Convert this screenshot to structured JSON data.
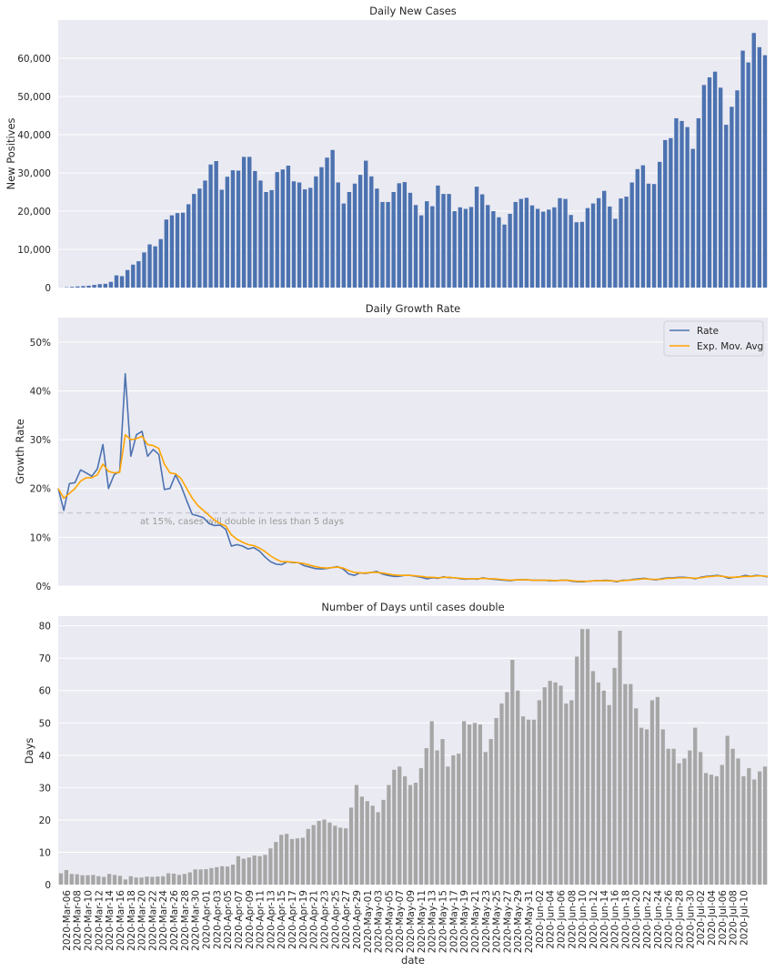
{
  "chart_data": [
    {
      "type": "bar",
      "title": "Daily New Cases",
      "ylabel": "New Positives",
      "xlabel": "",
      "ylim": [
        0,
        70000
      ],
      "yticks": [
        "0",
        "10,000",
        "20,000",
        "30,000",
        "40,000",
        "50,000",
        "60,000"
      ],
      "ytick_values": [
        0,
        10000,
        20000,
        30000,
        40000,
        50000,
        60000
      ],
      "grid": true,
      "color": "#4c72b0",
      "values": [
        30,
        100,
        200,
        300,
        400,
        500,
        700,
        900,
        1000,
        1500,
        3200,
        3000,
        4600,
        6000,
        6900,
        9200,
        11300,
        10800,
        12700,
        17800,
        18900,
        19500,
        19600,
        21800,
        24500,
        25900,
        28000,
        32200,
        33100,
        25600,
        29000,
        30700,
        30600,
        34200,
        34200,
        30500,
        28000,
        25000,
        25500,
        30200,
        30900,
        31900,
        27800,
        27500,
        25700,
        26100,
        29100,
        31500,
        34000,
        36000,
        27500,
        22000,
        25000,
        27200,
        29500,
        33200,
        29100,
        25900,
        22400,
        22400,
        25000,
        27300,
        27600,
        24800,
        21600,
        18900,
        22600,
        21300,
        26700,
        24500,
        24500,
        20000,
        21000,
        20600,
        21100,
        26400,
        24400,
        21600,
        20000,
        18400,
        16500,
        19300,
        22400,
        23200,
        23500,
        21500,
        20600,
        19900,
        20400,
        21000,
        23400,
        23200,
        19000,
        17100,
        17200,
        20800,
        22000,
        23400,
        25300,
        21200,
        18000,
        23300,
        23800,
        27500,
        31000,
        32000,
        27200,
        27100,
        32900,
        38600,
        39100,
        44300,
        43600,
        42000,
        36300,
        44300,
        53000,
        55000,
        56500,
        52300,
        42600,
        47300,
        51600,
        62000,
        58900,
        66600,
        62900,
        60800
      ]
    },
    {
      "type": "line",
      "title": "Daily Growth Rate",
      "ylabel": "Growth Rate",
      "xlabel": "",
      "ylim": [
        0,
        0.55
      ],
      "yticks": [
        "0%",
        "10%",
        "20%",
        "30%",
        "40%",
        "50%"
      ],
      "ytick_values": [
        0,
        0.1,
        0.2,
        0.3,
        0.4,
        0.5
      ],
      "grid": true,
      "legend": "top-right",
      "threshold": 0.15,
      "annotation": "at 15%, cases will double in less than 5 days",
      "series": [
        {
          "name": "Rate",
          "color": "#4c72b0",
          "values": [
            0.2,
            0.155,
            0.21,
            0.212,
            0.238,
            0.232,
            0.225,
            0.24,
            0.29,
            0.2,
            0.228,
            0.235,
            0.435,
            0.266,
            0.31,
            0.317,
            0.266,
            0.28,
            0.27,
            0.198,
            0.2,
            0.228,
            0.205,
            0.175,
            0.147,
            0.144,
            0.14,
            0.128,
            0.124,
            0.125,
            0.116,
            0.082,
            0.085,
            0.082,
            0.076,
            0.079,
            0.072,
            0.06,
            0.05,
            0.045,
            0.044,
            0.05,
            0.048,
            0.048,
            0.042,
            0.039,
            0.036,
            0.035,
            0.036,
            0.038,
            0.04,
            0.035,
            0.025,
            0.022,
            0.027,
            0.026,
            0.028,
            0.03,
            0.025,
            0.022,
            0.02,
            0.02,
            0.022,
            0.022,
            0.02,
            0.018,
            0.015,
            0.017,
            0.016,
            0.019,
            0.017,
            0.017,
            0.015,
            0.014,
            0.015,
            0.014,
            0.017,
            0.015,
            0.014,
            0.013,
            0.012,
            0.011,
            0.013,
            0.013,
            0.013,
            0.012,
            0.012,
            0.012,
            0.011,
            0.011,
            0.012,
            0.012,
            0.01,
            0.009,
            0.009,
            0.01,
            0.011,
            0.011,
            0.012,
            0.011,
            0.009,
            0.012,
            0.012,
            0.014,
            0.015,
            0.016,
            0.014,
            0.013,
            0.015,
            0.017,
            0.017,
            0.018,
            0.018,
            0.017,
            0.015,
            0.018,
            0.02,
            0.021,
            0.022,
            0.02,
            0.016,
            0.018,
            0.019,
            0.022,
            0.02,
            0.022,
            0.021,
            0.019
          ]
        },
        {
          "name": "Exp. Mov. Avg",
          "color": "#ffa500",
          "values": [
            0.2,
            0.18,
            0.19,
            0.2,
            0.215,
            0.222,
            0.222,
            0.228,
            0.25,
            0.235,
            0.232,
            0.233,
            0.31,
            0.3,
            0.302,
            0.307,
            0.29,
            0.288,
            0.282,
            0.25,
            0.232,
            0.23,
            0.22,
            0.2,
            0.18,
            0.165,
            0.155,
            0.145,
            0.135,
            0.128,
            0.123,
            0.105,
            0.096,
            0.09,
            0.085,
            0.083,
            0.078,
            0.071,
            0.062,
            0.055,
            0.05,
            0.05,
            0.049,
            0.048,
            0.046,
            0.043,
            0.04,
            0.038,
            0.037,
            0.038,
            0.039,
            0.037,
            0.032,
            0.028,
            0.027,
            0.027,
            0.028,
            0.028,
            0.027,
            0.025,
            0.023,
            0.022,
            0.022,
            0.022,
            0.021,
            0.02,
            0.018,
            0.018,
            0.017,
            0.018,
            0.018,
            0.017,
            0.016,
            0.015,
            0.015,
            0.015,
            0.016,
            0.015,
            0.015,
            0.014,
            0.013,
            0.012,
            0.013,
            0.013,
            0.013,
            0.012,
            0.012,
            0.012,
            0.012,
            0.011,
            0.012,
            0.012,
            0.011,
            0.01,
            0.01,
            0.01,
            0.011,
            0.011,
            0.011,
            0.011,
            0.01,
            0.011,
            0.012,
            0.013,
            0.014,
            0.015,
            0.014,
            0.014,
            0.014,
            0.016,
            0.016,
            0.017,
            0.017,
            0.017,
            0.016,
            0.017,
            0.019,
            0.02,
            0.021,
            0.02,
            0.018,
            0.018,
            0.019,
            0.02,
            0.02,
            0.021,
            0.021,
            0.02
          ]
        }
      ]
    },
    {
      "type": "bar",
      "title": "Number of Days until cases double",
      "ylabel": "Days",
      "xlabel": "date",
      "ylim": [
        0,
        83
      ],
      "yticks": [
        "0",
        "10",
        "20",
        "30",
        "40",
        "50",
        "60",
        "70",
        "80"
      ],
      "ytick_values": [
        0,
        10,
        20,
        30,
        40,
        50,
        60,
        70,
        80
      ],
      "grid": true,
      "color": "#a6a6a6",
      "xtick_labels": [
        "2020-Mar-06",
        "2020-Mar-08",
        "2020-Mar-10",
        "2020-Mar-12",
        "2020-Mar-14",
        "2020-Mar-16",
        "2020-Mar-18",
        "2020-Mar-20",
        "2020-Mar-22",
        "2020-Mar-24",
        "2020-Mar-26",
        "2020-Mar-28",
        "2020-Mar-30",
        "2020-Apr-01",
        "2020-Apr-03",
        "2020-Apr-05",
        "2020-Apr-07",
        "2020-Apr-09",
        "2020-Apr-11",
        "2020-Apr-13",
        "2020-Apr-15",
        "2020-Apr-17",
        "2020-Apr-19",
        "2020-Apr-21",
        "2020-Apr-23",
        "2020-Apr-25",
        "2020-Apr-27",
        "2020-Apr-29",
        "2020-May-01",
        "2020-May-03",
        "2020-May-05",
        "2020-May-07",
        "2020-May-09",
        "2020-May-11",
        "2020-May-13",
        "2020-May-15",
        "2020-May-17",
        "2020-May-19",
        "2020-May-21",
        "2020-May-23",
        "2020-May-25",
        "2020-May-27",
        "2020-May-29",
        "2020-May-31",
        "2020-Jun-02",
        "2020-Jun-04",
        "2020-Jun-06",
        "2020-Jun-08",
        "2020-Jun-10",
        "2020-Jun-12",
        "2020-Jun-14",
        "2020-Jun-16",
        "2020-Jun-18",
        "2020-Jun-20",
        "2020-Jun-22",
        "2020-Jun-24",
        "2020-Jun-26",
        "2020-Jun-28",
        "2020-Jun-30",
        "2020-Jul-02",
        "2020-Jul-04",
        "2020-Jul-06",
        "2020-Jul-08",
        "2020-Jul-10"
      ],
      "values": [
        3.5,
        4.5,
        3.3,
        3.2,
        2.9,
        2.9,
        3.0,
        2.6,
        2.4,
        3.3,
        3.0,
        2.7,
        1.6,
        2.6,
        2.2,
        2.2,
        2.5,
        2.4,
        2.5,
        2.6,
        3.5,
        3.4,
        3.0,
        3.3,
        3.8,
        4.7,
        4.7,
        4.8,
        5.1,
        5.4,
        5.7,
        5.6,
        6.2,
        8.8,
        8.0,
        8.4,
        9.0,
        8.8,
        9.2,
        11.2,
        13.2,
        15.4,
        15.7,
        14.1,
        14.3,
        14.5,
        17.2,
        18.4,
        19.7,
        20.1,
        19.2,
        18.2,
        17.6,
        17.4,
        23.8,
        30.8,
        27.2,
        25.8,
        24.4,
        22.4,
        26.2,
        30.8,
        35.5,
        36.5,
        33.5,
        30.8,
        31.5,
        36.0,
        42.2,
        50.5,
        41.5,
        45.0,
        36.5,
        40.0,
        40.5,
        50.5,
        49.5,
        50.0,
        49.5,
        41.0,
        45.0,
        51.5,
        56.0,
        59.5,
        69.5,
        60.0,
        52.0,
        51.0,
        51.0,
        57.0,
        61.0,
        63.0,
        62.5,
        61.5,
        56.0,
        57.0,
        70.5,
        79.0,
        79.0,
        66.0,
        62.5,
        60.0,
        55.5,
        67.0,
        78.5,
        62.0,
        62.0,
        54.5,
        48.5,
        48.0,
        57.0,
        58.0,
        48.0,
        42.0,
        42.0,
        37.5,
        39.0,
        41.5,
        48.5,
        41.0,
        34.5,
        34.0,
        33.5,
        37.0,
        46.0,
        42.0,
        39.0,
        33.5,
        36.0,
        32.5,
        35.0,
        36.5
      ]
    }
  ]
}
